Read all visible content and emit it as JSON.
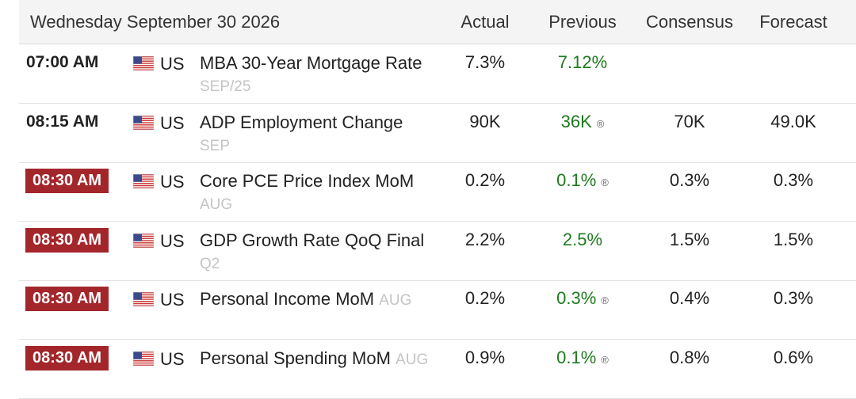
{
  "header": {
    "title": "Wednesday September 30 2026",
    "columns": [
      "Actual",
      "Previous",
      "Consensus",
      "Forecast"
    ]
  },
  "rows": [
    {
      "time": "07:00 AM",
      "country": "US",
      "event": "MBA 30-Year Mortgage Rate",
      "period": "SEP/25",
      "actual": "7.3%",
      "previous": "7.12%",
      "highlight": false
    },
    {
      "time": "08:15 AM",
      "country": "US",
      "event": "ADP Employment Change",
      "period": "SEP",
      "actual": "90K",
      "previous": "36K",
      "revised_mark": "®",
      "consensus": "70K",
      "forecast": "49.0K",
      "highlight": false
    },
    {
      "time": "08:30 AM",
      "country": "US",
      "event": "Core PCE Price Index MoM",
      "period": "AUG",
      "actual": "0.2%",
      "previous": "0.1%",
      "revised_mark": "®",
      "consensus": "0.3%",
      "forecast": "0.3%",
      "highlight": true
    },
    {
      "time": "08:30 AM",
      "country": "US",
      "event": "GDP Growth Rate QoQ Final",
      "period": "Q2",
      "actual": "2.2%",
      "previous": "2.5%",
      "consensus": "1.5%",
      "forecast": "1.5%",
      "highlight": true
    },
    {
      "time": "08:30 AM",
      "country": "US",
      "event": "Personal Income MoM",
      "period": "AUG",
      "actual": "0.2%",
      "previous": "0.3%",
      "revised_mark": "®",
      "consensus": "0.4%",
      "forecast": "0.3%",
      "highlight": true
    },
    {
      "time": "08:30 AM",
      "country": "US",
      "event": "Personal Spending MoM",
      "period": "AUG",
      "actual": "0.9%",
      "previous": "0.1%",
      "revised_mark": "®",
      "consensus": "0.8%",
      "forecast": "0.6%",
      "highlight": true
    }
  ]
}
